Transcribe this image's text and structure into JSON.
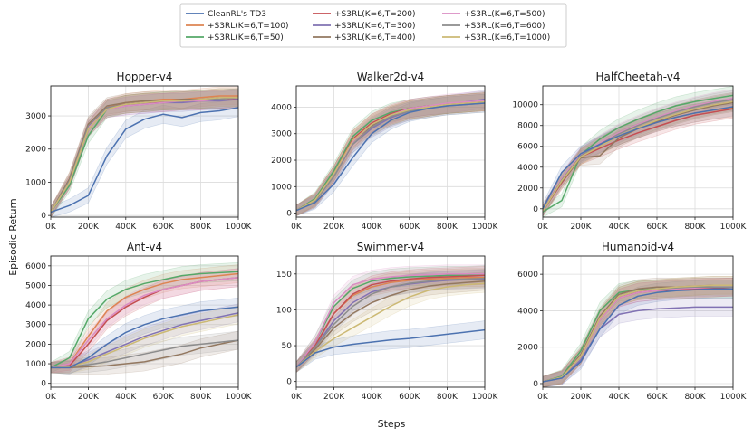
{
  "figure": {
    "ylabel": "Episodic Return",
    "xlabel": "Steps"
  },
  "legend": [
    {
      "name": "CleanRL's TD3",
      "color": "#4c72b0"
    },
    {
      "name": "+S3RL(K=6,T=100)",
      "color": "#dd8452"
    },
    {
      "name": "+S3RL(K=6,T=50)",
      "color": "#55a868"
    },
    {
      "name": "+S3RL(K=6,T=200)",
      "color": "#c44e52"
    },
    {
      "name": "+S3RL(K=6,T=300)",
      "color": "#8172b3"
    },
    {
      "name": "+S3RL(K=6,T=400)",
      "color": "#937860"
    },
    {
      "name": "+S3RL(K=6,T=500)",
      "color": "#da8bc3"
    },
    {
      "name": "+S3RL(K=6,T=600)",
      "color": "#8c8c8c"
    },
    {
      "name": "+S3RL(K=6,T=1000)",
      "color": "#ccb974"
    }
  ],
  "chart_data": [
    {
      "type": "line",
      "title": "Hopper-v4",
      "xlim": [
        0,
        1000000
      ],
      "ylim": [
        -50,
        3900
      ],
      "xticks": [
        "0K",
        "200K",
        "400K",
        "600K",
        "800K",
        "1000K"
      ],
      "yticks": [
        0,
        1000,
        2000,
        3000
      ],
      "grid": true,
      "x": [
        0,
        100000,
        200000,
        300000,
        400000,
        500000,
        600000,
        700000,
        800000,
        900000,
        1000000
      ],
      "series": [
        {
          "name": "CleanRL's TD3",
          "values": [
            100,
            300,
            600,
            1800,
            2600,
            2900,
            3050,
            2950,
            3100,
            3150,
            3250
          ]
        },
        {
          "name": "+S3RL(K=6,T=100)",
          "values": [
            100,
            1100,
            2700,
            3250,
            3400,
            3450,
            3500,
            3500,
            3550,
            3600,
            3600
          ]
        },
        {
          "name": "+S3RL(K=6,T=50)",
          "values": [
            100,
            900,
            2400,
            3200,
            3350,
            3400,
            3450,
            3450,
            3500,
            3500,
            3550
          ]
        },
        {
          "name": "+S3RL(K=6,T=200)",
          "values": [
            100,
            1000,
            2600,
            3250,
            3350,
            3400,
            3400,
            3450,
            3450,
            3500,
            3500
          ]
        },
        {
          "name": "+S3RL(K=6,T=300)",
          "values": [
            100,
            1000,
            2600,
            3200,
            3300,
            3350,
            3400,
            3400,
            3450,
            3450,
            3500
          ]
        },
        {
          "name": "+S3RL(K=6,T=400)",
          "values": [
            100,
            1100,
            2750,
            3300,
            3400,
            3450,
            3450,
            3500,
            3500,
            3550,
            3550
          ]
        },
        {
          "name": "+S3RL(K=6,T=500)",
          "values": [
            100,
            1000,
            2650,
            3200,
            3300,
            3350,
            3400,
            3450,
            3450,
            3500,
            3550
          ]
        },
        {
          "name": "+S3RL(K=6,T=600)",
          "values": [
            100,
            1050,
            2700,
            3250,
            3350,
            3400,
            3450,
            3450,
            3500,
            3500,
            3550
          ]
        },
        {
          "name": "+S3RL(K=6,T=1000)",
          "values": [
            100,
            1000,
            2600,
            3200,
            3350,
            3400,
            3450,
            3450,
            3500,
            3550,
            3550
          ]
        }
      ]
    },
    {
      "type": "line",
      "title": "Walker2d-v4",
      "xlim": [
        0,
        1000000
      ],
      "ylim": [
        -150,
        4800
      ],
      "xticks": [
        "0K",
        "200K",
        "400K",
        "600K",
        "800K",
        "1000K"
      ],
      "yticks": [
        0,
        1000,
        2000,
        3000,
        4000
      ],
      "grid": true,
      "x": [
        0,
        100000,
        200000,
        300000,
        400000,
        500000,
        600000,
        700000,
        800000,
        900000,
        1000000
      ],
      "series": [
        {
          "name": "CleanRL's TD3",
          "values": [
            100,
            400,
            1100,
            2100,
            3000,
            3500,
            3800,
            3950,
            4050,
            4100,
            4150
          ]
        },
        {
          "name": "+S3RL(K=6,T=100)",
          "values": [
            100,
            500,
            1500,
            2800,
            3400,
            3700,
            3900,
            4000,
            4100,
            4150,
            4200
          ]
        },
        {
          "name": "+S3RL(K=6,T=50)",
          "values": [
            100,
            550,
            1600,
            2900,
            3500,
            3800,
            3950,
            4050,
            4100,
            4150,
            4250
          ]
        },
        {
          "name": "+S3RL(K=6,T=200)",
          "values": [
            100,
            500,
            1500,
            2800,
            3400,
            3750,
            3950,
            4050,
            4100,
            4150,
            4200
          ]
        },
        {
          "name": "+S3RL(K=6,T=300)",
          "values": [
            100,
            450,
            1400,
            2600,
            3200,
            3600,
            3850,
            4000,
            4100,
            4200,
            4300
          ]
        },
        {
          "name": "+S3RL(K=6,T=400)",
          "values": [
            100,
            500,
            1500,
            2700,
            3300,
            3650,
            3900,
            4000,
            4100,
            4150,
            4200
          ]
        },
        {
          "name": "+S3RL(K=6,T=500)",
          "values": [
            100,
            500,
            1450,
            2700,
            3350,
            3700,
            3950,
            4050,
            4150,
            4200,
            4250
          ]
        },
        {
          "name": "+S3RL(K=6,T=600)",
          "values": [
            100,
            450,
            1400,
            2600,
            3250,
            3650,
            3850,
            3950,
            4050,
            4100,
            4150
          ]
        },
        {
          "name": "+S3RL(K=6,T=1000)",
          "values": [
            100,
            500,
            1500,
            2750,
            3350,
            3700,
            3900,
            4000,
            4100,
            4150,
            4200
          ]
        }
      ]
    },
    {
      "type": "line",
      "title": "HalfCheetah-v4",
      "xlim": [
        0,
        1000000
      ],
      "ylim": [
        -800,
        11800
      ],
      "xticks": [
        "0K",
        "200K",
        "400K",
        "600K",
        "800K",
        "1000K"
      ],
      "yticks": [
        0,
        2000,
        4000,
        6000,
        8000,
        10000
      ],
      "grid": true,
      "x": [
        0,
        100000,
        200000,
        300000,
        400000,
        500000,
        600000,
        700000,
        800000,
        900000,
        1000000
      ],
      "series": [
        {
          "name": "CleanRL's TD3",
          "values": [
            0,
            3500,
            5300,
            6200,
            7000,
            7700,
            8300,
            8800,
            9200,
            9500,
            9800
          ]
        },
        {
          "name": "+S3RL(K=6,T=100)",
          "values": [
            -200,
            2800,
            5000,
            6100,
            7000,
            7700,
            8300,
            8800,
            9200,
            9500,
            9700
          ]
        },
        {
          "name": "+S3RL(K=6,T=50)",
          "values": [
            -300,
            800,
            5200,
            6700,
            7800,
            8600,
            9300,
            9900,
            10300,
            10600,
            10900
          ]
        },
        {
          "name": "+S3RL(K=6,T=200)",
          "values": [
            -200,
            2500,
            5000,
            5800,
            6600,
            7300,
            7900,
            8500,
            9000,
            9300,
            9600
          ]
        },
        {
          "name": "+S3RL(K=6,T=300)",
          "values": [
            -200,
            2800,
            5100,
            6100,
            7000,
            7800,
            8500,
            9100,
            9600,
            10000,
            10300
          ]
        },
        {
          "name": "+S3RL(K=6,T=400)",
          "values": [
            -200,
            2600,
            4900,
            5100,
            6800,
            7700,
            8400,
            9000,
            9500,
            9900,
            10200
          ]
        },
        {
          "name": "+S3RL(K=6,T=500)",
          "values": [
            -200,
            2900,
            5200,
            6300,
            7300,
            8100,
            8800,
            9400,
            9900,
            10300,
            10600
          ]
        },
        {
          "name": "+S3RL(K=6,T=600)",
          "values": [
            -200,
            2800,
            5100,
            6200,
            7200,
            8000,
            8700,
            9300,
            9800,
            10200,
            10500
          ]
        },
        {
          "name": "+S3RL(K=6,T=1000)",
          "values": [
            -200,
            2700,
            5000,
            6000,
            7000,
            7800,
            8500,
            9100,
            9600,
            10000,
            10300
          ]
        }
      ]
    },
    {
      "type": "line",
      "title": "Ant-v4",
      "xlim": [
        0,
        1000000
      ],
      "ylim": [
        -200,
        6500
      ],
      "xticks": [
        "0K",
        "200K",
        "400K",
        "600K",
        "800K",
        "1000K"
      ],
      "yticks": [
        0,
        1000,
        2000,
        3000,
        4000,
        5000,
        6000
      ],
      "grid": true,
      "x": [
        0,
        100000,
        200000,
        300000,
        400000,
        500000,
        600000,
        700000,
        800000,
        900000,
        1000000
      ],
      "series": [
        {
          "name": "CleanRL's TD3",
          "values": [
            800,
            800,
            1300,
            2000,
            2600,
            3000,
            3300,
            3500,
            3700,
            3800,
            3900
          ]
        },
        {
          "name": "+S3RL(K=6,T=100)",
          "values": [
            800,
            1000,
            2400,
            3700,
            4400,
            4800,
            5100,
            5300,
            5400,
            5500,
            5600
          ]
        },
        {
          "name": "+S3RL(K=6,T=50)",
          "values": [
            800,
            1300,
            3300,
            4300,
            4800,
            5100,
            5300,
            5500,
            5600,
            5650,
            5700
          ]
        },
        {
          "name": "+S3RL(K=6,T=200)",
          "values": [
            800,
            900,
            2000,
            3200,
            3900,
            4400,
            4800,
            5000,
            5200,
            5300,
            5400
          ]
        },
        {
          "name": "+S3RL(K=6,T=300)",
          "values": [
            800,
            850,
            1200,
            1600,
            2000,
            2400,
            2700,
            3000,
            3200,
            3400,
            3600
          ]
        },
        {
          "name": "+S3RL(K=6,T=400)",
          "values": [
            800,
            800,
            850,
            900,
            1000,
            1100,
            1300,
            1500,
            1800,
            2000,
            2200
          ]
        },
        {
          "name": "+S3RL(K=6,T=500)",
          "values": [
            800,
            1000,
            2200,
            3300,
            4000,
            4500,
            4800,
            5000,
            5200,
            5300,
            5400
          ]
        },
        {
          "name": "+S3RL(K=6,T=600)",
          "values": [
            800,
            850,
            950,
            1100,
            1300,
            1500,
            1700,
            1900,
            2000,
            2100,
            2200
          ]
        },
        {
          "name": "+S3RL(K=6,T=1000)",
          "values": [
            800,
            850,
            1100,
            1500,
            1900,
            2300,
            2600,
            2900,
            3100,
            3300,
            3500
          ]
        }
      ]
    },
    {
      "type": "line",
      "title": "Swimmer-v4",
      "xlim": [
        0,
        1000000
      ],
      "ylim": [
        -8,
        175
      ],
      "xticks": [
        "0K",
        "200K",
        "400K",
        "600K",
        "800K",
        "1000K"
      ],
      "yticks": [
        0,
        50,
        100,
        150
      ],
      "grid": true,
      "x": [
        0,
        100000,
        200000,
        300000,
        400000,
        500000,
        600000,
        700000,
        800000,
        900000,
        1000000
      ],
      "series": [
        {
          "name": "CleanRL's TD3",
          "values": [
            20,
            40,
            48,
            52,
            55,
            58,
            60,
            63,
            66,
            69,
            72
          ]
        },
        {
          "name": "+S3RL(K=6,T=100)",
          "values": [
            20,
            50,
            95,
            120,
            132,
            138,
            141,
            143,
            144,
            145,
            145
          ]
        },
        {
          "name": "+S3RL(K=6,T=50)",
          "values": [
            20,
            55,
            105,
            130,
            140,
            144,
            146,
            147,
            148,
            148,
            149
          ]
        },
        {
          "name": "+S3RL(K=6,T=200)",
          "values": [
            20,
            50,
            95,
            122,
            135,
            140,
            143,
            145,
            146,
            147,
            148
          ]
        },
        {
          "name": "+S3RL(K=6,T=300)",
          "values": [
            20,
            48,
            85,
            110,
            125,
            132,
            136,
            139,
            141,
            142,
            143
          ]
        },
        {
          "name": "+S3RL(K=6,T=400)",
          "values": [
            20,
            45,
            75,
            95,
            110,
            120,
            128,
            133,
            136,
            138,
            140
          ]
        },
        {
          "name": "+S3RL(K=6,T=500)",
          "values": [
            20,
            55,
            110,
            135,
            143,
            146,
            148,
            149,
            150,
            150,
            150
          ]
        },
        {
          "name": "+S3RL(K=6,T=600)",
          "values": [
            20,
            48,
            80,
            105,
            122,
            132,
            137,
            140,
            142,
            143,
            144
          ]
        },
        {
          "name": "+S3RL(K=6,T=1000)",
          "values": [
            20,
            42,
            60,
            75,
            90,
            105,
            118,
            127,
            132,
            135,
            137
          ]
        }
      ]
    },
    {
      "type": "line",
      "title": "Humanoid-v4",
      "xlim": [
        0,
        1000000
      ],
      "ylim": [
        -200,
        7000
      ],
      "xticks": [
        "0K",
        "200K",
        "400K",
        "600K",
        "800K",
        "1000K"
      ],
      "yticks": [
        0,
        2000,
        4000,
        6000
      ],
      "grid": true,
      "x": [
        0,
        100000,
        200000,
        300000,
        400000,
        500000,
        600000,
        700000,
        800000,
        900000,
        1000000
      ],
      "series": [
        {
          "name": "CleanRL's TD3",
          "values": [
            100,
            300,
            1200,
            3000,
            4300,
            4800,
            5000,
            5100,
            5150,
            5200,
            5200
          ]
        },
        {
          "name": "+S3RL(K=6,T=100)",
          "values": [
            100,
            350,
            1500,
            3600,
            4800,
            5100,
            5200,
            5250,
            5300,
            5300,
            5300
          ]
        },
        {
          "name": "+S3RL(K=6,T=50)",
          "values": [
            100,
            400,
            1800,
            4000,
            5000,
            5150,
            5200,
            5200,
            5200,
            5200,
            5200
          ]
        },
        {
          "name": "+S3RL(K=6,T=200)",
          "values": [
            100,
            350,
            1500,
            3500,
            4700,
            5000,
            5100,
            5150,
            5200,
            5250,
            5300
          ]
        },
        {
          "name": "+S3RL(K=6,T=300)",
          "values": [
            100,
            300,
            1300,
            3000,
            3800,
            4000,
            4100,
            4150,
            4200,
            4200,
            4200
          ]
        },
        {
          "name": "+S3RL(K=6,T=400)",
          "values": [
            100,
            350,
            1600,
            3700,
            4900,
            5200,
            5300,
            5300,
            5350,
            5400,
            5400
          ]
        },
        {
          "name": "+S3RL(K=6,T=500)",
          "values": [
            100,
            350,
            1500,
            3500,
            4700,
            5000,
            5100,
            5200,
            5250,
            5300,
            5300
          ]
        },
        {
          "name": "+S3RL(K=6,T=600)",
          "values": [
            100,
            350,
            1500,
            3600,
            4800,
            5100,
            5200,
            5250,
            5300,
            5300,
            5300
          ]
        },
        {
          "name": "+S3RL(K=6,T=1000)",
          "values": [
            100,
            350,
            1500,
            3600,
            4800,
            5100,
            5200,
            5300,
            5350,
            5400,
            5400
          ]
        }
      ]
    }
  ]
}
